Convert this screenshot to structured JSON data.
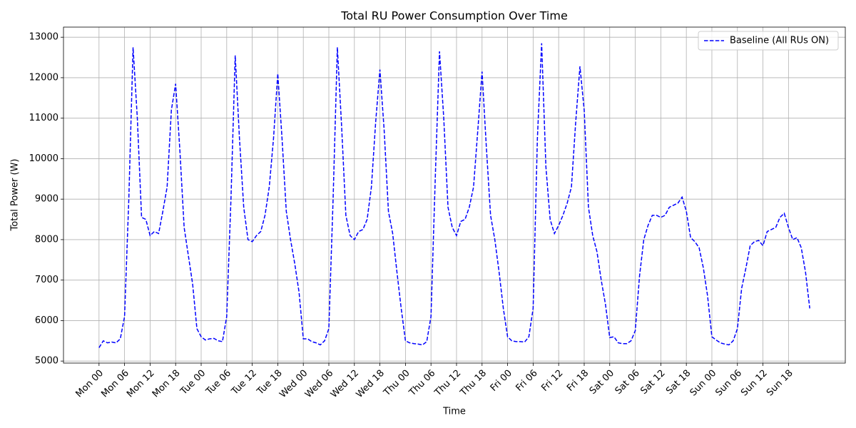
{
  "chart_data": {
    "type": "line",
    "title": "Total RU Power Consumption Over Time",
    "x_label": "Time",
    "y_label": "Total Power (W)",
    "x": [
      0,
      1,
      2,
      3,
      4,
      5,
      6,
      7,
      8,
      9,
      10,
      11,
      12,
      13,
      14,
      15,
      16,
      17,
      18,
      19,
      20,
      21,
      22,
      23,
      24,
      25,
      26,
      27,
      28,
      29,
      30,
      31,
      32,
      33,
      34,
      35,
      36,
      37,
      38,
      39,
      40,
      41,
      42,
      43,
      44,
      45,
      46,
      47,
      48,
      49,
      50,
      51,
      52,
      53,
      54,
      55,
      56,
      57,
      58,
      59,
      60,
      61,
      62,
      63,
      64,
      65,
      66,
      67,
      68,
      69,
      70,
      71,
      72,
      73,
      74,
      75,
      76,
      77,
      78,
      79,
      80,
      81,
      82,
      83,
      84,
      85,
      86,
      87,
      88,
      89,
      90,
      91,
      92,
      93,
      94,
      95,
      96,
      97,
      98,
      99,
      100,
      101,
      102,
      103,
      104,
      105,
      106,
      107,
      108,
      109,
      110,
      111,
      112,
      113,
      114,
      115,
      116,
      117,
      118,
      119,
      120,
      121,
      122,
      123,
      124,
      125,
      126,
      127,
      128,
      129,
      130,
      131,
      132,
      133,
      134,
      135,
      136,
      137,
      138,
      139,
      140,
      141,
      142,
      143,
      144,
      145,
      146,
      147,
      148,
      149,
      150,
      151,
      152,
      153,
      154,
      155,
      156,
      157,
      158,
      159,
      160,
      161,
      162,
      163,
      164,
      165,
      166,
      167
    ],
    "series": [
      {
        "name": "Baseline (All RUs ON)",
        "color": "#0000ff",
        "dashed": true,
        "values": [
          5330,
          5500,
          5450,
          5470,
          5450,
          5550,
          6100,
          9000,
          12750,
          11000,
          8550,
          8500,
          8100,
          8200,
          8150,
          8700,
          9300,
          11200,
          11850,
          10200,
          8300,
          7600,
          6900,
          5800,
          5600,
          5520,
          5550,
          5560,
          5500,
          5480,
          6100,
          9000,
          12550,
          10500,
          8800,
          8000,
          7950,
          8100,
          8200,
          8600,
          9300,
          10500,
          12100,
          10500,
          8700,
          8000,
          7400,
          6700,
          5550,
          5550,
          5480,
          5450,
          5400,
          5500,
          5800,
          9000,
          12750,
          10800,
          8600,
          8100,
          8000,
          8200,
          8250,
          8500,
          9300,
          10900,
          12200,
          10700,
          8700,
          8150,
          7200,
          6300,
          5500,
          5450,
          5430,
          5420,
          5400,
          5480,
          6100,
          9500,
          12650,
          11000,
          8800,
          8300,
          8100,
          8450,
          8500,
          8800,
          9300,
          10700,
          12150,
          10300,
          8600,
          8000,
          7200,
          6300,
          5600,
          5500,
          5480,
          5480,
          5470,
          5600,
          6300,
          10500,
          12850,
          9800,
          8500,
          8150,
          8350,
          8600,
          8900,
          9300,
          10900,
          12280,
          11200,
          8800,
          8100,
          7700,
          7000,
          6400,
          5580,
          5600,
          5450,
          5430,
          5430,
          5500,
          5750,
          7100,
          8000,
          8350,
          8600,
          8600,
          8550,
          8600,
          8800,
          8850,
          8900,
          9050,
          8700,
          8050,
          7950,
          7800,
          7300,
          6600,
          5600,
          5520,
          5450,
          5420,
          5400,
          5500,
          5800,
          6800,
          7300,
          7850,
          7950,
          7980,
          7850,
          8200,
          8250,
          8300,
          8550,
          8650,
          8300,
          8000,
          8050,
          7800,
          7200,
          6300
        ]
      }
    ],
    "xlim": [
      -8.35,
      175.35
    ],
    "ylim": [
      4950,
      13250
    ],
    "xticks": [
      {
        "value": 0,
        "label": "Mon 00"
      },
      {
        "value": 6,
        "label": "Mon 06"
      },
      {
        "value": 12,
        "label": "Mon 12"
      },
      {
        "value": 18,
        "label": "Mon 18"
      },
      {
        "value": 24,
        "label": "Tue 00"
      },
      {
        "value": 30,
        "label": "Tue 06"
      },
      {
        "value": 36,
        "label": "Tue 12"
      },
      {
        "value": 42,
        "label": "Tue 18"
      },
      {
        "value": 48,
        "label": "Wed 00"
      },
      {
        "value": 54,
        "label": "Wed 06"
      },
      {
        "value": 60,
        "label": "Wed 12"
      },
      {
        "value": 66,
        "label": "Wed 18"
      },
      {
        "value": 72,
        "label": "Thu 00"
      },
      {
        "value": 78,
        "label": "Thu 06"
      },
      {
        "value": 84,
        "label": "Thu 12"
      },
      {
        "value": 90,
        "label": "Thu 18"
      },
      {
        "value": 96,
        "label": "Fri 00"
      },
      {
        "value": 102,
        "label": "Fri 06"
      },
      {
        "value": 108,
        "label": "Fri 12"
      },
      {
        "value": 114,
        "label": "Fri 18"
      },
      {
        "value": 120,
        "label": "Sat 00"
      },
      {
        "value": 126,
        "label": "Sat 06"
      },
      {
        "value": 132,
        "label": "Sat 12"
      },
      {
        "value": 138,
        "label": "Sat 18"
      },
      {
        "value": 144,
        "label": "Sun 00"
      },
      {
        "value": 150,
        "label": "Sun 06"
      },
      {
        "value": 156,
        "label": "Sun 12"
      },
      {
        "value": 162,
        "label": "Sun 18"
      }
    ],
    "yticks": [
      5000,
      6000,
      7000,
      8000,
      9000,
      10000,
      11000,
      12000,
      13000
    ],
    "grid": true,
    "legend": "upper right"
  }
}
